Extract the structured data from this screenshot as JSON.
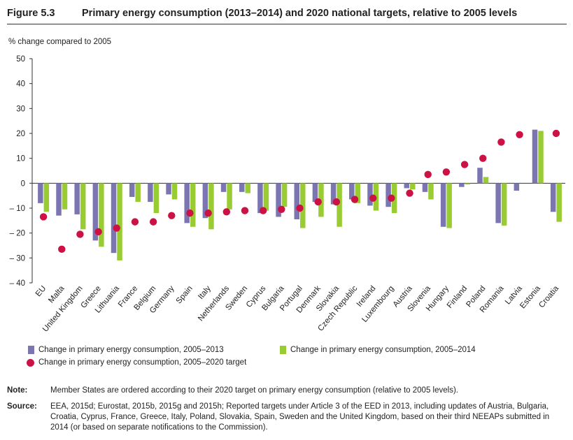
{
  "figure": {
    "label": "Figure 5.3",
    "title": "Primary energy consumption (2013–2014) and 2020 national targets, relative to 2005 levels"
  },
  "colors": {
    "series_2013": "#7b76b2",
    "series_2014": "#99cc33",
    "target": "#cc1144"
  },
  "chart_data": {
    "type": "bar",
    "ylabel": "% change compared to 2005",
    "ylim": [
      -40,
      50
    ],
    "yticks": [
      50,
      40,
      30,
      20,
      10,
      0,
      -10,
      -20,
      -30,
      -40
    ],
    "ytick_labels": [
      "50",
      "40",
      "30",
      "20",
      "10",
      "0",
      "– 10",
      "– 20",
      "– 30",
      "– 40"
    ],
    "grid": false,
    "legend_position": "bottom",
    "categories": [
      "EU",
      "Malta",
      "United Kingdom",
      "Greece",
      "Lithuania",
      "France",
      "Belgium",
      "Germany",
      "Spain",
      "Italy",
      "Netherlands",
      "Sweden",
      "Cyprus",
      "Bulgaria",
      "Portugal",
      "Denmark",
      "Slovakia",
      "Czech Republic",
      "Ireland",
      "Luxembourg",
      "Austria",
      "Slovenia",
      "Hungary",
      "Finland",
      "Poland",
      "Romania",
      "Latvia",
      "Estonia",
      "Croatia"
    ],
    "series": [
      {
        "name": "Change in primary energy consumption, 2005–2013",
        "values": [
          -8,
          -13,
          -12.5,
          -23,
          -28,
          -5.5,
          -7.5,
          -4.5,
          -16,
          -14,
          -3.5,
          -3.5,
          -12,
          -13.5,
          -14.5,
          -7.5,
          -8.5,
          -6.5,
          -9,
          -9.5,
          -2,
          -3.5,
          -17.5,
          -1.5,
          6.2,
          -16,
          -3,
          21.5,
          -11.5
        ]
      },
      {
        "name": "Change in primary energy consumption, 2005–2014",
        "values": [
          -11.5,
          -10.5,
          -18.5,
          -25.5,
          -31,
          -7.5,
          -12,
          -6.5,
          -17.5,
          -18.5,
          -10.5,
          -4,
          -11,
          -9.5,
          -18,
          -13.5,
          -17.5,
          -8,
          -11,
          -12,
          -2.5,
          -6.5,
          -18,
          -0.5,
          2.5,
          -17,
          null,
          21,
          -15.5
        ]
      },
      {
        "name": "Change in primary energy consumption, 2005–2020 target",
        "values": [
          -13.5,
          -26.5,
          -20.5,
          -19.5,
          -18,
          -15.5,
          -15.5,
          -13,
          -12,
          -12,
          -11.5,
          -11,
          -11,
          -10.5,
          -10,
          -7.5,
          -7.5,
          -6.5,
          -6,
          -6,
          -4,
          3.5,
          4.5,
          7.5,
          10,
          16.5,
          19.5,
          null,
          20
        ]
      }
    ]
  },
  "legend": {
    "s2013": "Change in primary energy consumption, 2005–2013",
    "s2014": "Change in primary energy consumption, 2005–2014",
    "target": "Change in primary energy consumption, 2005–2020 target"
  },
  "notes": {
    "note_key": "Note:",
    "note_text": "Member States are ordered according to their 2020 target on primary energy consumption (relative to 2005 levels).",
    "source_key": "Source:",
    "source_text": "EEA, 2015d; Eurostat, 2015b, 2015g and 2015h; Reported targets under Article 3 of the EED in 2013, including updates of Austria, Bulgaria, Croatia, Cyprus, France, Greece, Italy, Poland, Slovakia, Spain, Sweden and the United Kingdom, based on their third NEEAPs submitted in 2014 (or based on separate notifications to the Commission)."
  }
}
